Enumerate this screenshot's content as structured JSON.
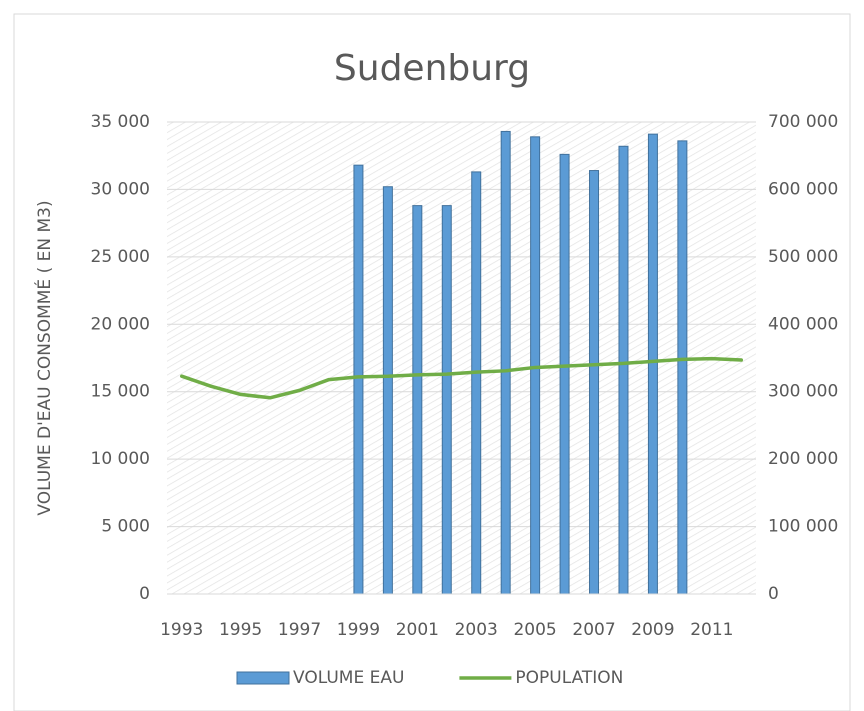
{
  "chart_data": {
    "type": "bar_line",
    "title": "Sudenburg",
    "y_label": "VOLUME D'EAU CONSOMMÉ ( EN M3)",
    "categories": [
      "1993",
      null,
      "1995",
      null,
      "1997",
      null,
      "1999",
      null,
      "2001",
      null,
      "2003",
      null,
      "2005",
      null,
      "2007",
      null,
      "2009",
      null,
      "2011",
      null
    ],
    "series": [
      {
        "name": "VOLUME EAU",
        "type": "bar",
        "color": "#5b9bd5",
        "values": [
          null,
          null,
          null,
          null,
          null,
          null,
          31800,
          30200,
          28800,
          28800,
          31300,
          34300,
          33900,
          32600,
          31400,
          33200,
          34100,
          33600,
          null,
          null
        ]
      },
      {
        "name": "POPULATION",
        "type": "line",
        "axis": "y2",
        "color": "#70ad47",
        "values": [
          323000,
          308000,
          296000,
          291000,
          302000,
          318000,
          322000,
          323000,
          325000,
          326000,
          329000,
          331000,
          336000,
          338000,
          340000,
          342000,
          345000,
          348000,
          349000,
          347000
        ]
      }
    ],
    "ylim": [
      0,
      35000
    ],
    "yticks": [
      0,
      {
        "value": 5000,
        "label": "5 000"
      },
      {
        "value": 10000,
        "label": "10 000"
      },
      {
        "value": 15000,
        "label": "15 000"
      },
      {
        "value": 20000,
        "label": "20 000"
      },
      {
        "value": 25000,
        "label": "25 000"
      },
      {
        "value": 30000,
        "label": "30 000"
      },
      {
        "value": 35000,
        "label": "35 000"
      }
    ],
    "y2lim": [
      0,
      700000
    ],
    "y2ticks": [
      0,
      {
        "value": 100000,
        "label": "100 000"
      },
      {
        "value": 200000,
        "label": "200 000"
      },
      {
        "value": 300000,
        "label": "300 000"
      },
      {
        "value": 400000,
        "label": "400 000"
      },
      {
        "value": 500000,
        "label": "500 000"
      },
      {
        "value": 600000,
        "label": "600 000"
      },
      {
        "value": 700000,
        "label": "700 000"
      }
    ],
    "grid": true,
    "legend": "bottom"
  }
}
